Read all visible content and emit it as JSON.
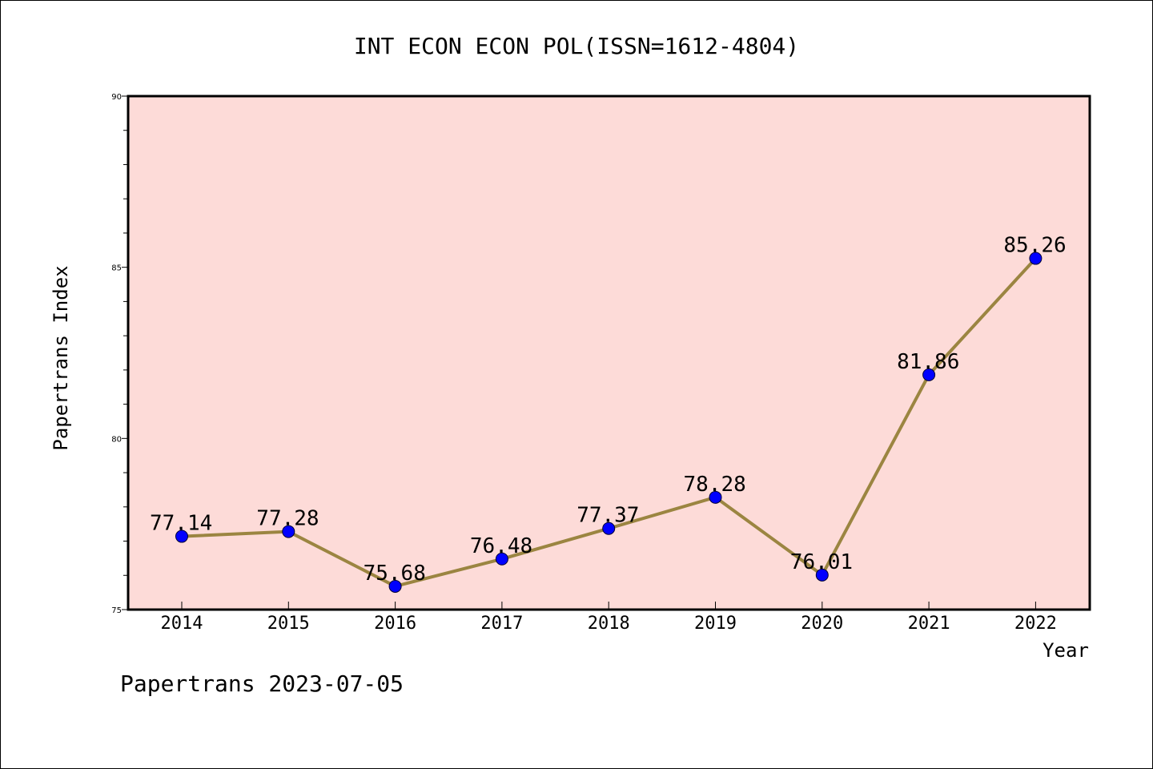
{
  "chart_data": {
    "type": "line",
    "title": "INT ECON ECON POL(ISSN=1612-4804)",
    "xlabel": "Year",
    "ylabel": "Papertrans Index",
    "categories": [
      "2014",
      "2015",
      "2016",
      "2017",
      "2018",
      "2019",
      "2020",
      "2021",
      "2022"
    ],
    "values": [
      77.14,
      77.28,
      75.68,
      76.48,
      77.37,
      78.28,
      76.01,
      81.86,
      85.26
    ],
    "data_labels": [
      "77.14",
      "77.28",
      "75.68",
      "76.48",
      "77.37",
      "78.28",
      "76.01",
      "81.86",
      "85.26"
    ],
    "ylim": [
      75,
      90
    ],
    "yticks": [
      "75",
      "80",
      "85",
      "90"
    ],
    "grid": false,
    "colors": {
      "plot_background": "#fddbd8",
      "line": "#9b8541",
      "marker": "#0000ff"
    }
  },
  "footer": {
    "text": "Papertrans 2023-07-05"
  }
}
